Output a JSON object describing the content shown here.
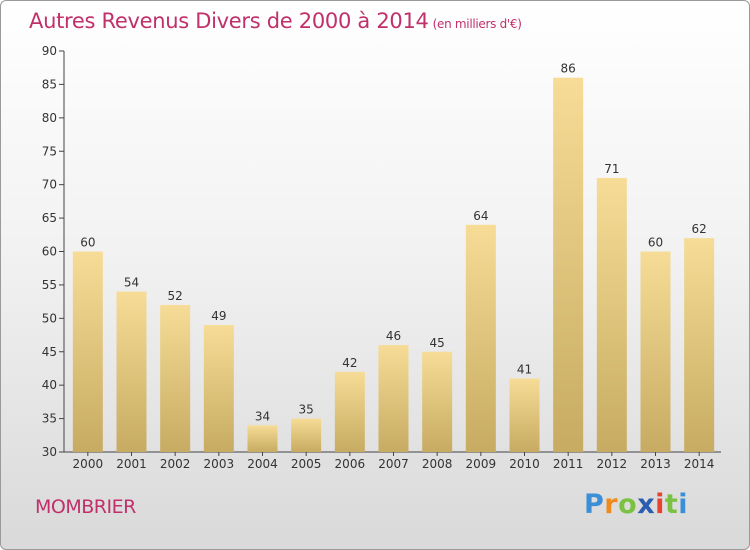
{
  "title": "Autres Revenus Divers de 2000 à 2014",
  "unit": "(en milliers d'€)",
  "commune": "MOMBRIER",
  "logo": {
    "letters": [
      "P",
      "r",
      "o",
      "x",
      "i",
      "t",
      "i"
    ],
    "colors": [
      "#3a8fd6",
      "#f08a1c",
      "#7cc242",
      "#2a5db0",
      "#e8432e",
      "#7cc242",
      "#3a8fd6"
    ]
  },
  "colors": {
    "accent": "#c0306a",
    "bar_top": "#f6dc96",
    "bar_bottom": "#c7ab62"
  },
  "chart_data": {
    "type": "bar",
    "categories": [
      "2000",
      "2001",
      "2002",
      "2003",
      "2004",
      "2005",
      "2006",
      "2007",
      "2008",
      "2009",
      "2010",
      "2011",
      "2012",
      "2013",
      "2014"
    ],
    "values": [
      60,
      54,
      52,
      49,
      34,
      35,
      42,
      46,
      45,
      64,
      41,
      86,
      71,
      60,
      62
    ],
    "ylim": [
      30,
      90
    ],
    "yticks": [
      30,
      35,
      40,
      45,
      50,
      55,
      60,
      65,
      70,
      75,
      80,
      85,
      90
    ],
    "grid": false,
    "data_labels": true
  }
}
